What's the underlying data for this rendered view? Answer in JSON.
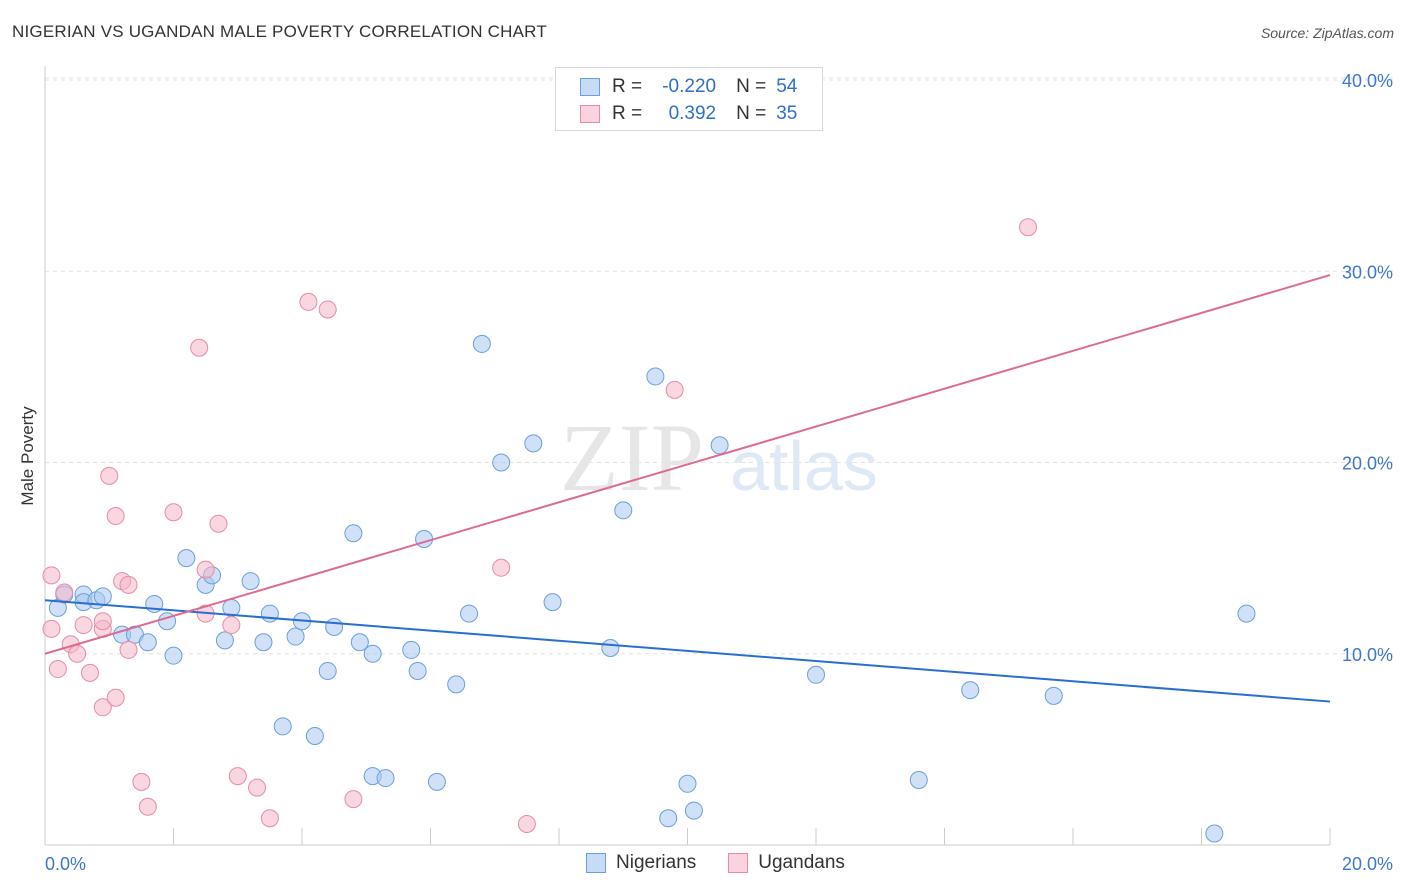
{
  "header": {
    "title": "NIGERIAN VS UGANDAN MALE POVERTY CORRELATION CHART",
    "source": "Source: ZipAtlas.com"
  },
  "legend_top": {
    "rows": [
      {
        "r_label": "R =",
        "r_value": "-0.220",
        "n_label": "N =",
        "n_value": "54",
        "color": "#a9c8f0"
      },
      {
        "r_label": "R =",
        "r_value": "0.392",
        "n_label": "N =",
        "n_value": "35",
        "color": "#f4b6c8"
      }
    ]
  },
  "bottom_legend": {
    "items": [
      {
        "label": "Nigerians",
        "color": "#a9c8f0"
      },
      {
        "label": "Ugandans",
        "color": "#f4b6c8"
      }
    ]
  },
  "watermark": {
    "zip": "ZIP",
    "atlas": "atlas"
  },
  "chart_data": {
    "type": "scatter",
    "title": "NIGERIAN VS UGANDAN MALE POVERTY CORRELATION CHART",
    "ylabel": "Male Poverty",
    "xlabel": "",
    "xlim": [
      0,
      20
    ],
    "ylim": [
      0,
      40
    ],
    "x_tick_labels": [
      "0.0%",
      "20.0%"
    ],
    "y_tick_labels": [
      "10.0%",
      "20.0%",
      "30.0%",
      "40.0%"
    ],
    "y_ticks": [
      10,
      20,
      30,
      40
    ],
    "grid": true,
    "legend_placement": "bottom",
    "series": [
      {
        "name": "Nigerians",
        "color": "#a9c8f0",
        "stroke": "#6a9fdc",
        "trend_color": "#2a6fcf",
        "trend": [
          [
            0,
            12.8
          ],
          [
            20,
            7.5
          ]
        ],
        "points": [
          [
            0.2,
            12.4
          ],
          [
            0.3,
            13.1
          ],
          [
            0.6,
            13.1
          ],
          [
            0.6,
            12.7
          ],
          [
            0.8,
            12.8
          ],
          [
            0.9,
            13.0
          ],
          [
            1.2,
            11.0
          ],
          [
            1.4,
            11.0
          ],
          [
            1.6,
            10.6
          ],
          [
            1.7,
            12.6
          ],
          [
            1.9,
            11.7
          ],
          [
            2.0,
            9.9
          ],
          [
            2.2,
            15.0
          ],
          [
            2.5,
            13.6
          ],
          [
            2.6,
            14.1
          ],
          [
            2.8,
            10.7
          ],
          [
            2.9,
            12.4
          ],
          [
            3.2,
            13.8
          ],
          [
            3.4,
            10.6
          ],
          [
            3.5,
            12.1
          ],
          [
            3.7,
            6.2
          ],
          [
            3.9,
            10.9
          ],
          [
            4.0,
            11.7
          ],
          [
            4.2,
            5.7
          ],
          [
            4.4,
            9.1
          ],
          [
            4.5,
            11.4
          ],
          [
            4.8,
            16.3
          ],
          [
            4.9,
            10.6
          ],
          [
            5.1,
            3.6
          ],
          [
            5.1,
            10.0
          ],
          [
            5.3,
            3.5
          ],
          [
            5.7,
            10.2
          ],
          [
            5.8,
            9.1
          ],
          [
            5.9,
            16.0
          ],
          [
            6.1,
            3.3
          ],
          [
            6.4,
            8.4
          ],
          [
            6.6,
            12.1
          ],
          [
            6.8,
            26.2
          ],
          [
            7.1,
            20.0
          ],
          [
            7.6,
            21.0
          ],
          [
            7.9,
            12.7
          ],
          [
            8.8,
            10.3
          ],
          [
            9.0,
            17.5
          ],
          [
            9.5,
            24.5
          ],
          [
            9.7,
            1.4
          ],
          [
            10.0,
            3.2
          ],
          [
            10.1,
            1.8
          ],
          [
            10.5,
            20.9
          ],
          [
            12.0,
            8.9
          ],
          [
            13.6,
            3.4
          ],
          [
            14.4,
            8.1
          ],
          [
            15.7,
            7.8
          ],
          [
            18.2,
            0.6
          ],
          [
            18.7,
            12.1
          ]
        ]
      },
      {
        "name": "Ugandans",
        "color": "#f4b6c8",
        "stroke": "#e88aa6",
        "trend_color": "#de6a93",
        "trend": [
          [
            0,
            10.0
          ],
          [
            20,
            29.8
          ]
        ],
        "points": [
          [
            0.1,
            14.1
          ],
          [
            0.1,
            11.3
          ],
          [
            0.2,
            9.2
          ],
          [
            0.3,
            13.2
          ],
          [
            0.4,
            10.5
          ],
          [
            0.5,
            10.0
          ],
          [
            0.6,
            11.5
          ],
          [
            0.7,
            9.0
          ],
          [
            0.9,
            11.3
          ],
          [
            0.9,
            7.2
          ],
          [
            0.9,
            11.7
          ],
          [
            1.0,
            19.3
          ],
          [
            1.1,
            7.7
          ],
          [
            1.1,
            17.2
          ],
          [
            1.2,
            13.8
          ],
          [
            1.3,
            10.2
          ],
          [
            1.3,
            13.6
          ],
          [
            1.5,
            3.3
          ],
          [
            1.6,
            2.0
          ],
          [
            2.0,
            17.4
          ],
          [
            2.4,
            26.0
          ],
          [
            2.5,
            12.1
          ],
          [
            2.5,
            14.4
          ],
          [
            2.7,
            16.8
          ],
          [
            2.9,
            11.5
          ],
          [
            3.0,
            3.6
          ],
          [
            3.3,
            3.0
          ],
          [
            3.5,
            1.4
          ],
          [
            4.1,
            28.4
          ],
          [
            4.4,
            28.0
          ],
          [
            4.8,
            2.4
          ],
          [
            7.1,
            14.5
          ],
          [
            7.5,
            1.1
          ],
          [
            9.8,
            23.8
          ],
          [
            15.3,
            32.3
          ]
        ]
      }
    ]
  }
}
